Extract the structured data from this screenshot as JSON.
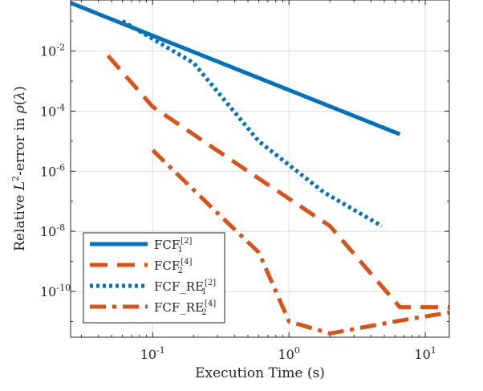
{
  "chart_data": {
    "type": "line",
    "xlabel": "Execution Time (s)",
    "ylabel": {
      "parts": [
        {
          "text": "Relative ",
          "italic": false,
          "sup": false
        },
        {
          "text": "L",
          "italic": true,
          "sup": false
        },
        {
          "text": "2",
          "italic": false,
          "sup": true
        },
        {
          "text": "-error in ",
          "italic": false,
          "sup": false
        },
        {
          "text": "ρ",
          "italic": true,
          "sup": false
        },
        {
          "text": "(",
          "italic": false,
          "sup": false
        },
        {
          "text": "λ",
          "italic": true,
          "sup": false
        },
        {
          "text": ")",
          "italic": false,
          "sup": false
        }
      ]
    },
    "xscale": "log",
    "yscale": "log",
    "xlim": [
      0.025,
      15
    ],
    "ylim": [
      3e-12,
      0.5
    ],
    "grid": true,
    "xticks": [
      {
        "value": 0.1,
        "base": "10",
        "exp": "-1"
      },
      {
        "value": 1,
        "base": "10",
        "exp": "0"
      },
      {
        "value": 10,
        "base": "10",
        "exp": "1"
      }
    ],
    "yticks": [
      {
        "value": 0.01,
        "base": "10",
        "exp": "-2"
      },
      {
        "value": 0.0001,
        "base": "10",
        "exp": "-4"
      },
      {
        "value": 1e-06,
        "base": "10",
        "exp": "-6"
      },
      {
        "value": 1e-08,
        "base": "10",
        "exp": "-8"
      },
      {
        "value": 1e-10,
        "base": "10",
        "exp": "-10"
      }
    ],
    "legend_position": "lower-left",
    "series": [
      {
        "name": {
          "base": "FCF",
          "sub": "1",
          "sup": "[2]"
        },
        "color": "#0072BD",
        "style": "solid",
        "points": [
          [
            0.025,
            0.4
          ],
          [
            6.5,
            1.7e-05
          ]
        ]
      },
      {
        "name": {
          "base": "FCF",
          "sub": "2",
          "sup": "[4]"
        },
        "color": "#D95319",
        "style": "dashed",
        "points": [
          [
            0.047,
            0.007
          ],
          [
            0.1,
            0.00014
          ],
          [
            0.5,
            1e-06
          ],
          [
            2.0,
            1.5e-08
          ],
          [
            6.5,
            3e-11
          ],
          [
            15,
            3e-11
          ]
        ]
      },
      {
        "name": {
          "base": "FCF_RE",
          "sub": "1",
          "sup": "[2]"
        },
        "color": "#0072BD",
        "style": "dotted",
        "points": [
          [
            0.06,
            0.1
          ],
          [
            0.2,
            0.004
          ],
          [
            0.6,
            1e-05
          ],
          [
            1.8,
            2e-07
          ],
          [
            4.8,
            1.5e-08
          ]
        ]
      },
      {
        "name": {
          "base": "FCF_RE",
          "sub": "2",
          "sup": "[4]"
        },
        "color": "#D95319",
        "style": "dashdot",
        "points": [
          [
            0.1,
            5e-06
          ],
          [
            0.3,
            4e-08
          ],
          [
            0.6,
            2e-09
          ],
          [
            1.0,
            1e-11
          ],
          [
            2.0,
            4e-12
          ],
          [
            6.0,
            1e-11
          ],
          [
            15,
            2e-11
          ]
        ]
      }
    ]
  }
}
